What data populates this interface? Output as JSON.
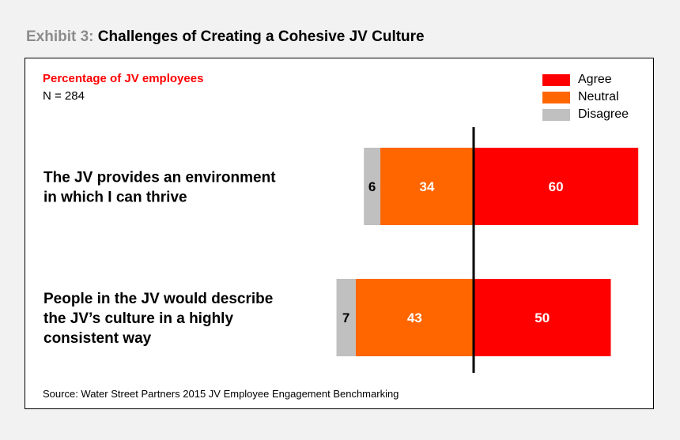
{
  "exhibit": {
    "prefix": "Exhibit 3:",
    "title": "Challenges of Creating a Cohesive JV Culture"
  },
  "panel": {
    "subtitle": "Percentage of JV employees",
    "n_label": "N = 284",
    "source": "Source: Water Street Partners 2015 JV Employee Engagement Benchmarking"
  },
  "legend": [
    {
      "label": "Agree",
      "color": "#ff0000"
    },
    {
      "label": "Neutral",
      "color": "#ff6600"
    },
    {
      "label": "Disagree",
      "color": "#c0c0c0"
    }
  ],
  "chart_data": {
    "type": "bar",
    "orientation": "horizontal-diverging",
    "categories": [
      [
        "The JV provides an environment",
        "in which I can thrive"
      ],
      [
        "People in the JV would describe",
        "the JV’s culture in a highly",
        "consistent way"
      ]
    ],
    "series": [
      {
        "name": "Agree",
        "color": "#ff0000",
        "values": [
          60,
          50
        ],
        "label_color": "#ffffff"
      },
      {
        "name": "Neutral",
        "color": "#ff6600",
        "values": [
          34,
          43
        ],
        "label_color": "#ffffff"
      },
      {
        "name": "Disagree",
        "color": "#c0c0c0",
        "values": [
          6,
          7
        ],
        "label_color": "#000000"
      }
    ],
    "legend_position": "top-right",
    "grid": false
  }
}
